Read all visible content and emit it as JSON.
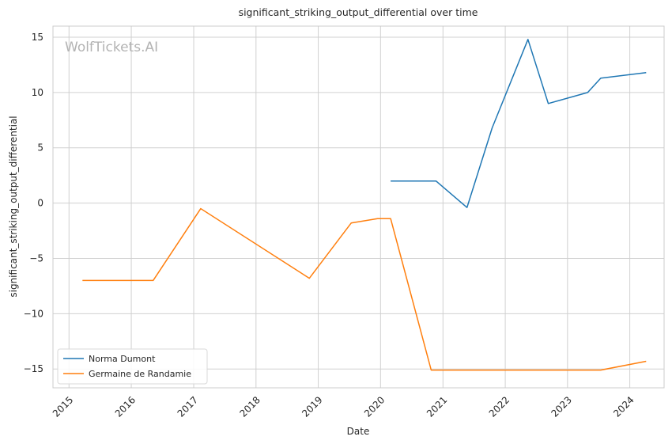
{
  "chart_data": {
    "type": "line",
    "title": "significant_striking_output_differential over time",
    "xlabel": "Date",
    "ylabel": "significant_striking_output_differential",
    "watermark": "WolfTickets.AI",
    "x_ticks": [
      "2015",
      "2016",
      "2017",
      "2018",
      "2019",
      "2020",
      "2021",
      "2022",
      "2023",
      "2024"
    ],
    "y_ticks": [
      "15",
      "10",
      "5",
      "0",
      "−5",
      "−10",
      "−15"
    ],
    "y_tick_values": [
      15,
      10,
      5,
      0,
      -5,
      -10,
      -15
    ],
    "xlim": [
      "2014-09-29",
      "2024-07-20"
    ],
    "ylim": [
      -16.7,
      16.0
    ],
    "grid": true,
    "legend_position": "bottom-left",
    "series": [
      {
        "name": "Norma Dumont",
        "color": "#1f77b4",
        "points": [
          {
            "x": "2020-02-29",
            "y": 2.0
          },
          {
            "x": "2020-11-21",
            "y": 2.0
          },
          {
            "x": "2021-05-22",
            "y": -0.4
          },
          {
            "x": "2021-10-16",
            "y": 6.8
          },
          {
            "x": "2022-05-14",
            "y": 14.8
          },
          {
            "x": "2022-09-10",
            "y": 9.0
          },
          {
            "x": "2023-04-29",
            "y": 10.0
          },
          {
            "x": "2023-07-15",
            "y": 11.3
          },
          {
            "x": "2024-04-06",
            "y": 11.8
          }
        ]
      },
      {
        "name": "Germaine de Randamie",
        "color": "#ff7f0e",
        "points": [
          {
            "x": "2015-03-21",
            "y": -7.0
          },
          {
            "x": "2016-05-08",
            "y": -7.0
          },
          {
            "x": "2017-02-11",
            "y": -0.5
          },
          {
            "x": "2018-11-10",
            "y": -6.8
          },
          {
            "x": "2019-07-13",
            "y": -1.8
          },
          {
            "x": "2019-12-14",
            "y": -1.4
          },
          {
            "x": "2020-02-29",
            "y": -1.4
          },
          {
            "x": "2020-10-24",
            "y": -15.1
          },
          {
            "x": "2023-07-15",
            "y": -15.1
          },
          {
            "x": "2024-04-06",
            "y": -14.3
          }
        ]
      }
    ]
  }
}
